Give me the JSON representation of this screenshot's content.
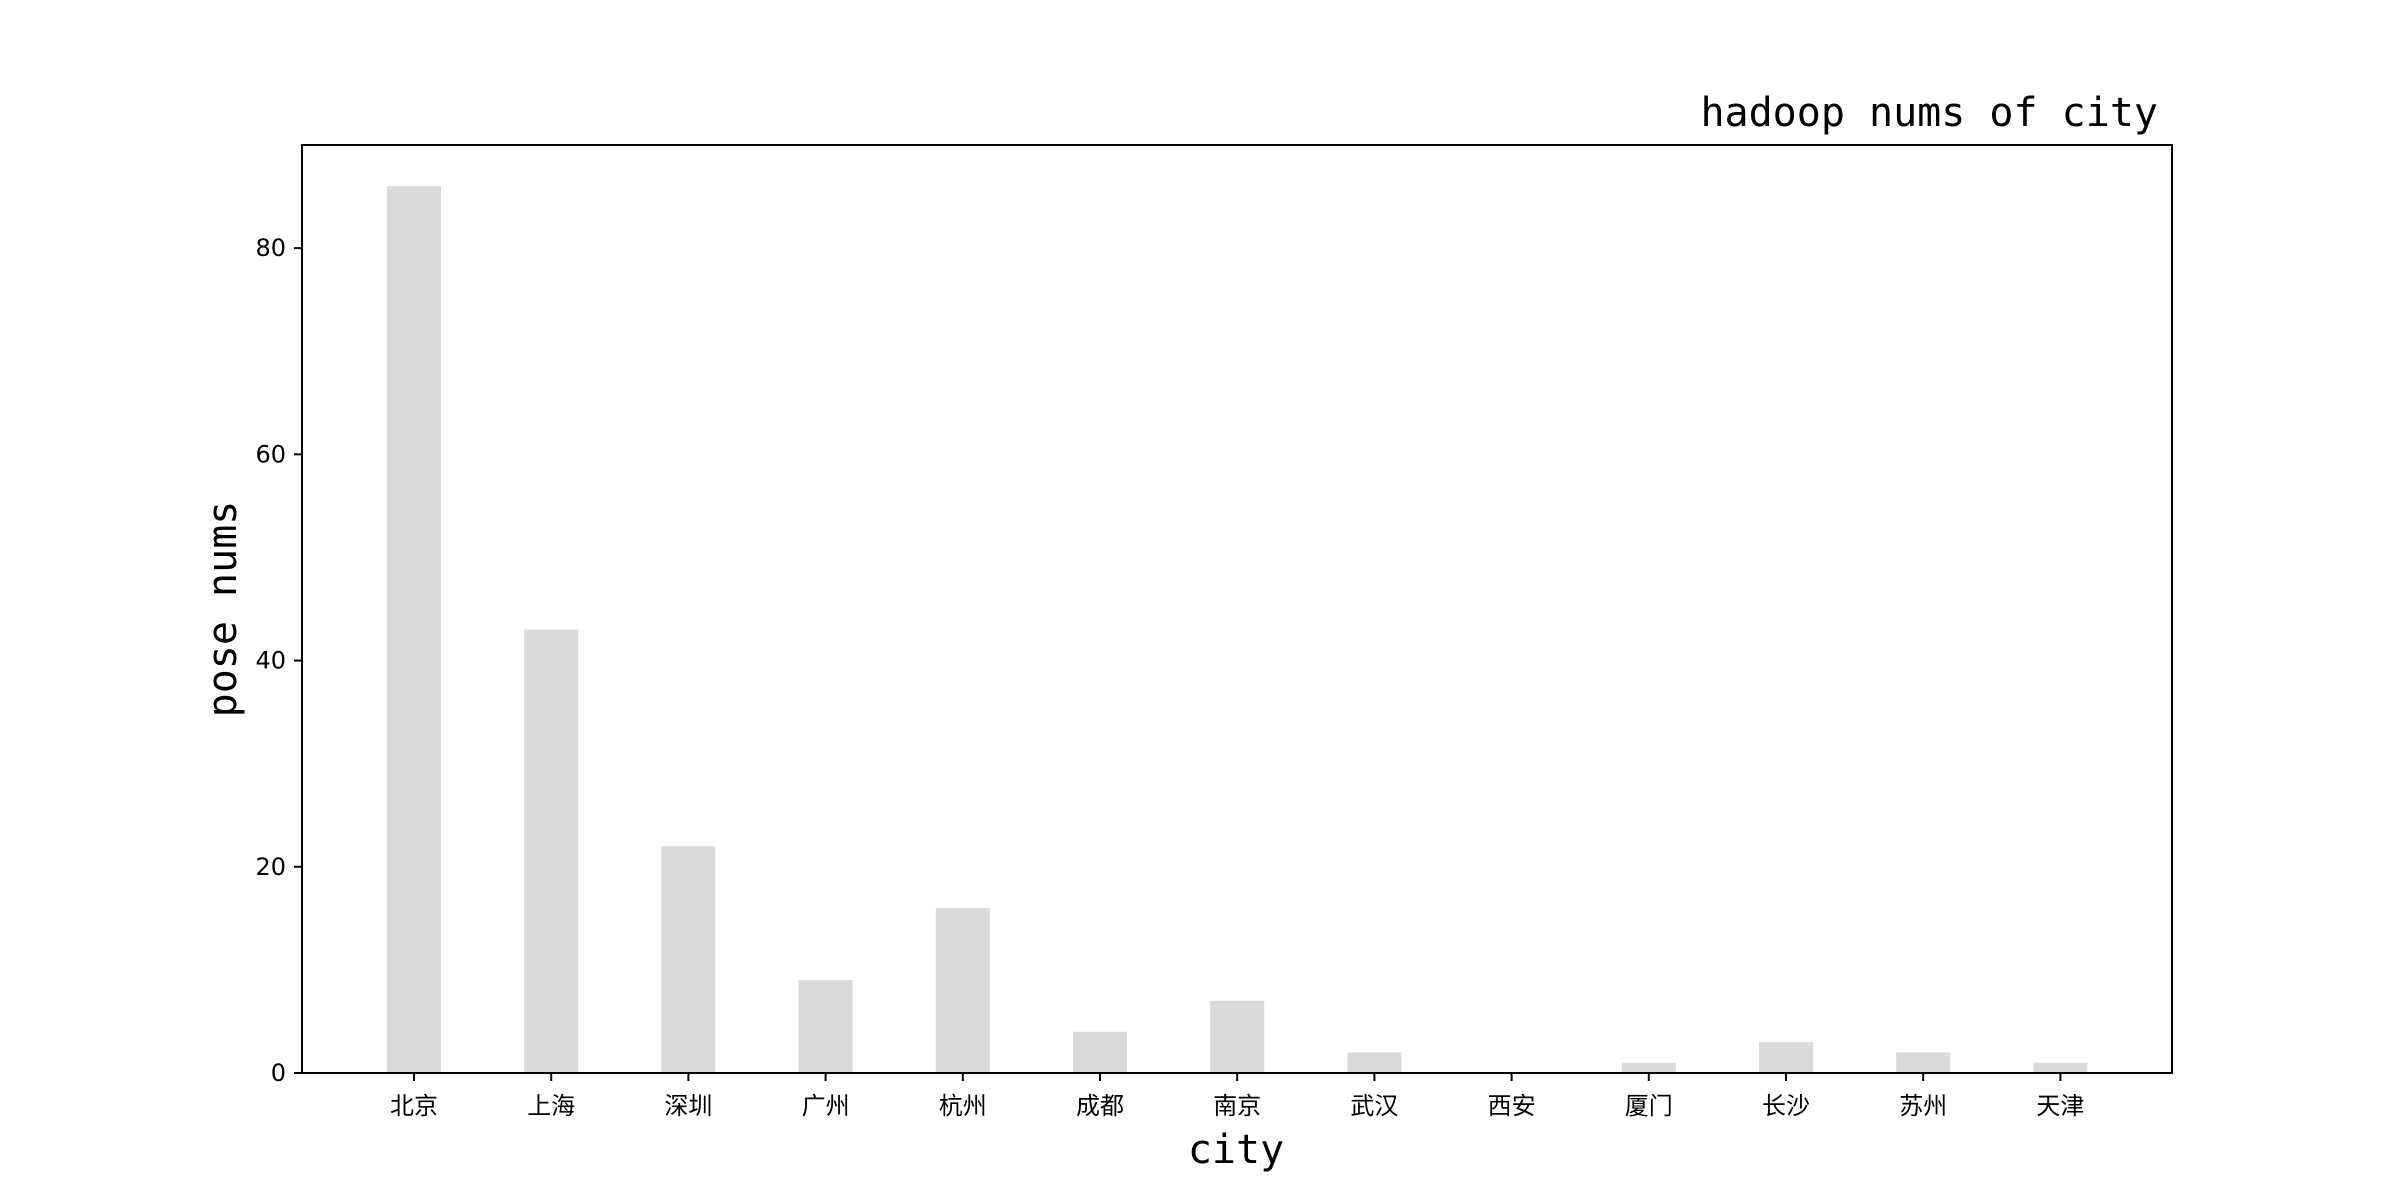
{
  "chart_data": {
    "type": "bar",
    "title": "hadoop nums of city",
    "xlabel": "city",
    "ylabel": "pose nums",
    "categories": [
      "北京",
      "上海",
      "深圳",
      "广州",
      "杭州",
      "成都",
      "南京",
      "武汉",
      "西安",
      "厦门",
      "长沙",
      "苏州",
      "天津"
    ],
    "values": [
      86,
      43,
      22,
      9,
      16,
      4,
      7,
      2,
      0,
      1,
      3,
      2,
      1
    ],
    "ylim": [
      0,
      90
    ],
    "yticks": [
      0,
      20,
      40,
      60,
      80
    ],
    "bar_color": "#dadada",
    "grid": false,
    "legend": false
  }
}
